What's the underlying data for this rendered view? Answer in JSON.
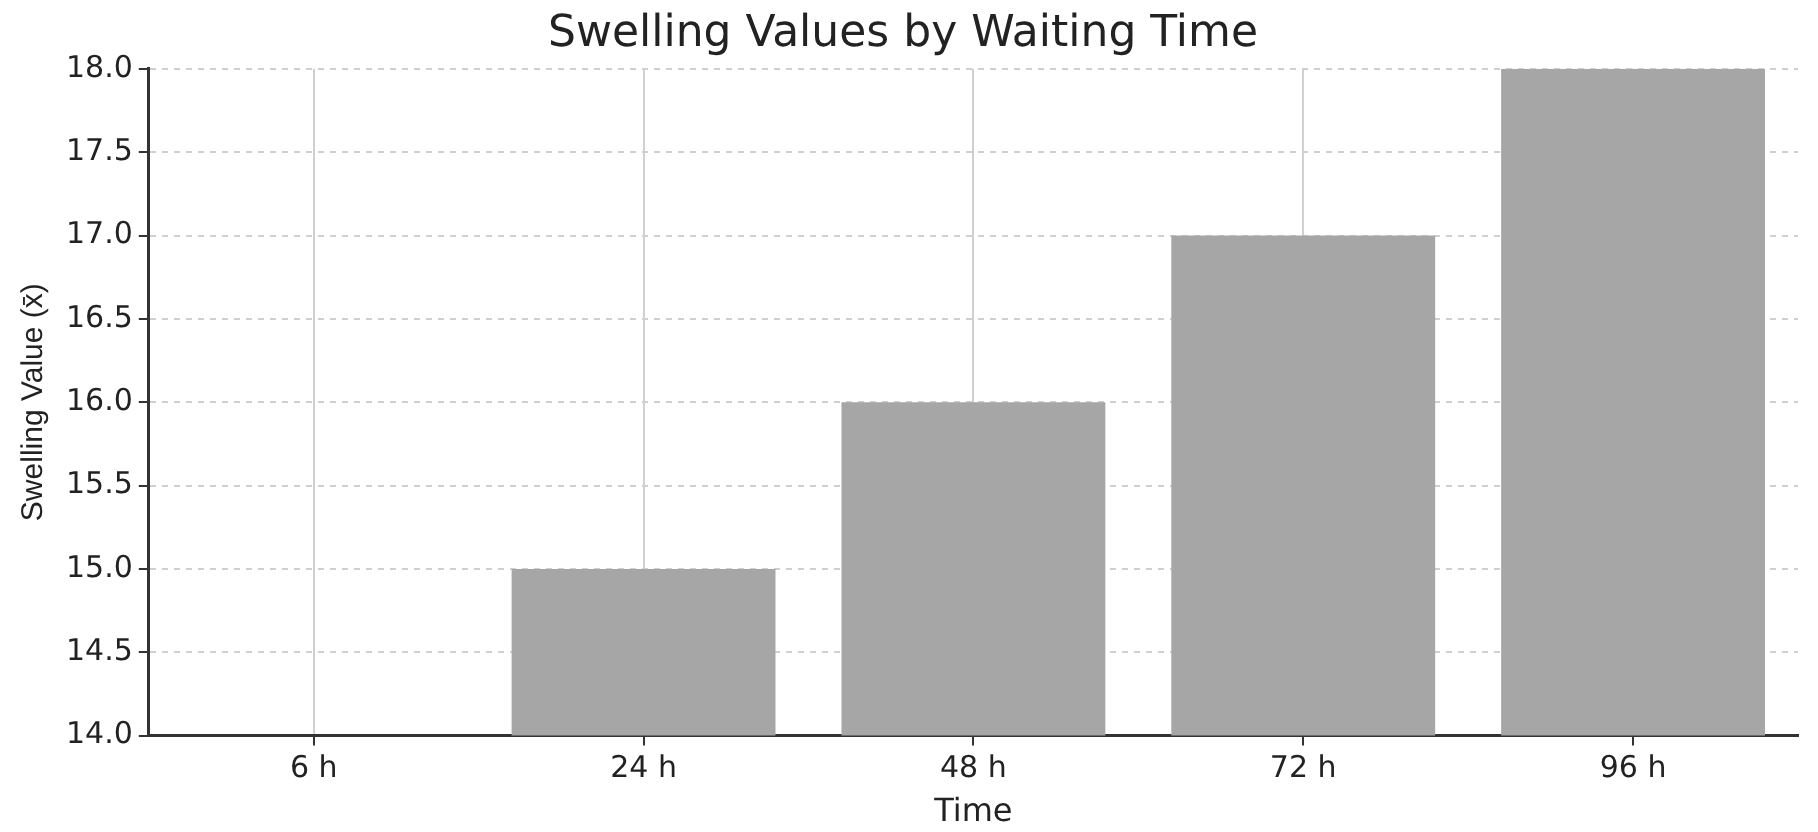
{
  "chart_data": {
    "type": "bar",
    "title": "Swelling Values by Waiting Time",
    "xlabel": "Time",
    "ylabel": "Swelling Value (x̄)",
    "categories": [
      "6 h",
      "24 h",
      "48 h",
      "72 h",
      "96 h"
    ],
    "values": [
      null,
      15,
      16,
      17,
      18
    ],
    "color": "#a6a6a6",
    "ylim": [
      14,
      18
    ],
    "yticks": [
      {
        "value": 14,
        "label": "14.0"
      },
      {
        "value": 14.5,
        "label": "14.5"
      },
      {
        "value": 15,
        "label": "15.0"
      },
      {
        "value": 15.5,
        "label": "15.5"
      },
      {
        "value": 16,
        "label": "16.0"
      },
      {
        "value": 16.5,
        "label": "16.5"
      },
      {
        "value": 17,
        "label": "17.0"
      },
      {
        "value": 17.5,
        "label": "17.5"
      },
      {
        "value": 18,
        "label": "18.0"
      }
    ],
    "grid": true,
    "legend": false
  }
}
